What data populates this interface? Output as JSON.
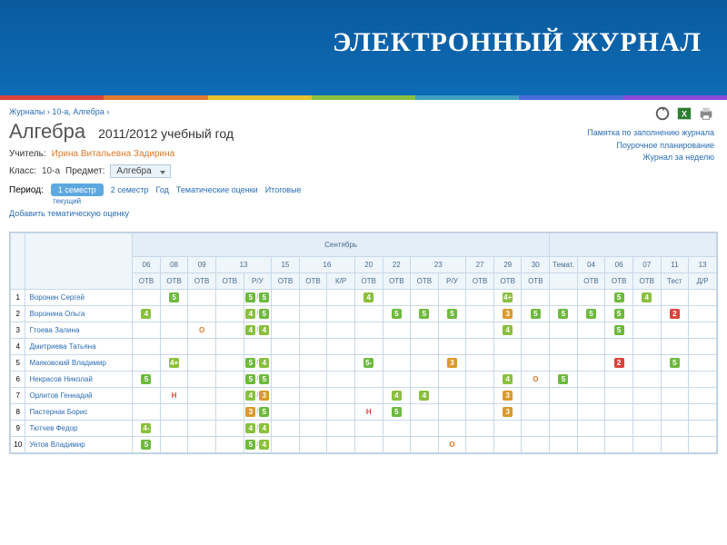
{
  "header": {
    "title": "ЭЛЕКТРОННЫЙ ЖУРНАЛ"
  },
  "rainbow_colors": [
    "#d9443a",
    "#e07a2e",
    "#e8c12e",
    "#8abf3f",
    "#3fa0bf",
    "#4a6bd9",
    "#8a4ad9"
  ],
  "breadcrumb": [
    "Журналы",
    "10-а, Алгебра"
  ],
  "subject": {
    "title": "Алгебра",
    "year": "2011/2012 учебный год"
  },
  "teacher": {
    "label": "Учитель:",
    "name": "Ирина Витальевна Задирина"
  },
  "class_row": {
    "label_class": "Класс:",
    "class": "10-а",
    "label_subject": "Предмет:",
    "subject": "Алгебра"
  },
  "period_row": {
    "label": "Период:",
    "active": "1 семестр",
    "items": [
      "2 семестр",
      "Год",
      "Тематические оценки",
      "Итоговые"
    ],
    "sub": "текущий"
  },
  "add_link": "Добавить тематическую оценку",
  "right_links": [
    "Памятка по заполнению журнала",
    "Поурочное планирование",
    "Журнал за неделю"
  ],
  "icons": [
    "refresh-icon",
    "excel-icon",
    "print-icon"
  ],
  "month": "Сентябрь",
  "date_cols": [
    {
      "d": "06",
      "t": "ОТВ"
    },
    {
      "d": "08",
      "t": "ОТВ"
    },
    {
      "d": "09",
      "t": "ОТВ"
    },
    {
      "d": "13",
      "t": "ОТВ",
      "t2": "Р/У"
    },
    {
      "d": "15",
      "t": "ОТВ"
    },
    {
      "d": "16",
      "t": "ОТВ",
      "t2": "К/Р"
    },
    {
      "d": "20",
      "t": "ОТВ"
    },
    {
      "d": "22",
      "t": "ОТВ"
    },
    {
      "d": "23",
      "t": "ОТВ",
      "t2": "Р/У"
    },
    {
      "d": "27",
      "t": "ОТВ"
    },
    {
      "d": "29",
      "t": "ОТВ"
    },
    {
      "d": "30",
      "t": "ОТВ"
    }
  ],
  "extra_cols": [
    {
      "d": "Темат.",
      "t": ""
    },
    {
      "d": "04",
      "t": "ОТВ"
    },
    {
      "d": "06",
      "t": "ОТВ"
    },
    {
      "d": "07",
      "t": "ОТВ"
    },
    {
      "d": "11",
      "t": "Тест"
    },
    {
      "d": "13",
      "t": "Д/Р"
    }
  ],
  "students": [
    {
      "n": 1,
      "name": "Воронин Сергей",
      "m": {
        "1": "5",
        "4": "5/5",
        "8": "4",
        "13": "4+",
        "17": "5",
        "18": "4"
      }
    },
    {
      "n": 2,
      "name": "Воронина Ольга",
      "m": {
        "0": "4",
        "4": "4/5",
        "9": "5",
        "10": "5",
        "11": "5",
        "13": "3",
        "14": "5",
        "15": "5",
        "16": "5",
        "17": "5",
        "19": "2"
      }
    },
    {
      "n": 3,
      "name": "Гтоева Залина",
      "m": {
        "2": "O",
        "4": "4/4",
        "13": "4",
        "17": "5"
      }
    },
    {
      "n": 4,
      "name": "Дмитриева Татьяна",
      "m": {}
    },
    {
      "n": 5,
      "name": "Маяковский Владимир",
      "m": {
        "1": "4+",
        "4": "5/4",
        "8": "5-",
        "11": "3",
        "17": "2",
        "19": "5"
      }
    },
    {
      "n": 6,
      "name": "Некрасов Николай",
      "m": {
        "0": "5",
        "4": "5/5",
        "13": "4",
        "14": "O",
        "15": "5"
      }
    },
    {
      "n": 7,
      "name": "Орлитов Геннадий",
      "m": {
        "1": "H",
        "4": "4/3",
        "9": "4",
        "10": "4",
        "13": "3"
      }
    },
    {
      "n": 8,
      "name": "Пастернак Борис",
      "m": {
        "4": "3/5",
        "8": "H",
        "9": "5",
        "13": "3"
      }
    },
    {
      "n": 9,
      "name": "Тютчев Федор",
      "m": {
        "0": "4-",
        "4": "4/4"
      }
    },
    {
      "n": 10,
      "name": "Уетов Владимир",
      "m": {
        "0": "5",
        "4": "5/4",
        "11": "O"
      }
    }
  ],
  "colors": {
    "header_grad_top": "#0a5a9e",
    "header_grad_bot": "#0d6bb5",
    "link": "#2a6db5",
    "border": "#c8d8e8",
    "th_bg": "#eef5fb",
    "g5": "#6eb93f",
    "g4": "#8abf3f",
    "g3": "#d99a2e",
    "g2": "#d9443a",
    "orange": "#d97a2a"
  }
}
